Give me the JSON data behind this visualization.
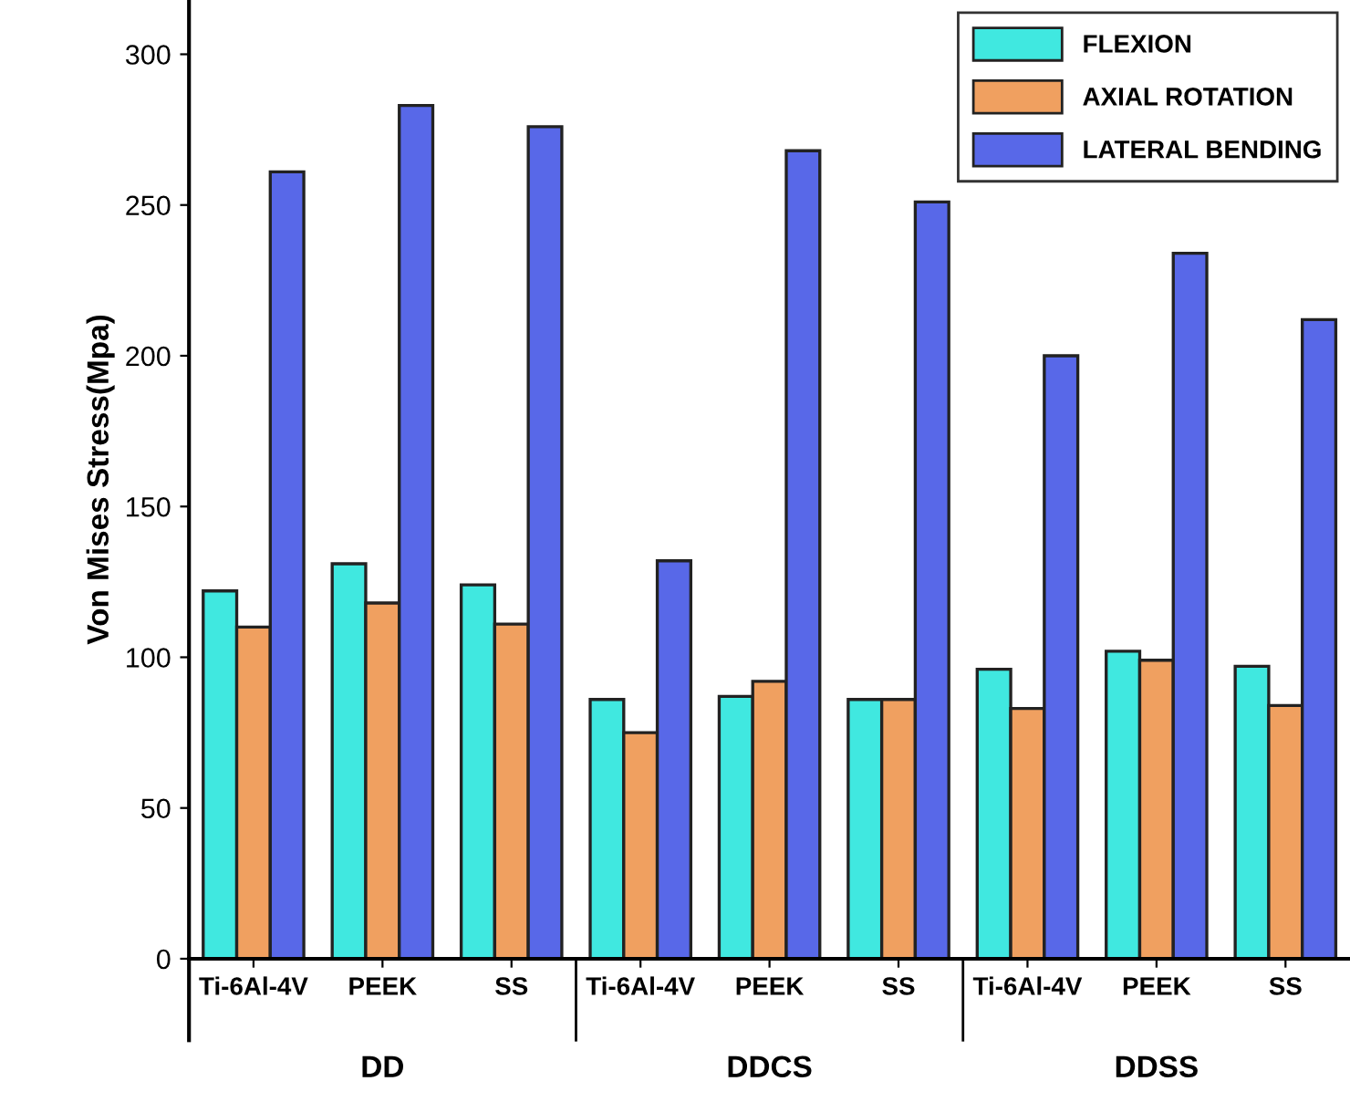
{
  "chart_data": {
    "type": "bar",
    "ylabel": "Von Mises Stress(Mpa)",
    "categories": [
      "Ti-6Al-4V",
      "PEEK",
      "SS",
      "Ti-6Al-4V",
      "PEEK",
      "SS",
      "Ti-6Al-4V",
      "PEEK",
      "SS"
    ],
    "series": [
      {
        "name": "FLEXION",
        "color": "#40e8e0",
        "values": [
          122,
          131,
          124,
          86,
          87,
          86,
          96,
          102,
          97
        ]
      },
      {
        "name": "AXIAL ROTATION",
        "color": "#f0a060",
        "values": [
          110,
          118,
          111,
          75,
          92,
          86,
          83,
          99,
          84
        ]
      },
      {
        "name": "LATERAL BENDING",
        "color": "#5868e8",
        "values": [
          261,
          283,
          276,
          132,
          268,
          251,
          200,
          234,
          212
        ]
      }
    ],
    "annotations": [
      "DD",
      "DDCS",
      "DDSS"
    ],
    "ylim": [
      0,
      318
    ],
    "yticks": [
      0,
      50,
      100,
      150,
      200,
      250,
      300
    ],
    "grid": false,
    "legend": "top right"
  }
}
